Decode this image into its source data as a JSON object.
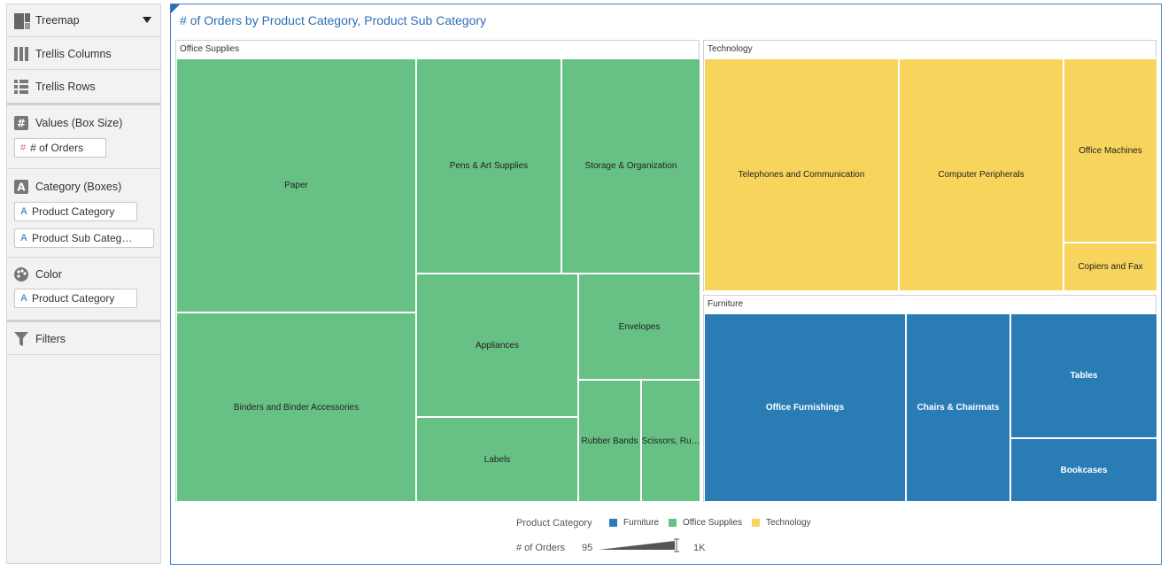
{
  "panel": {
    "chart_type_label": "Treemap",
    "trellis_columns": "Trellis Columns",
    "trellis_rows": "Trellis Rows",
    "values_label": "Values (Box Size)",
    "values_field": "# of Orders",
    "category_label": "Category (Boxes)",
    "category_fields": [
      "Product Category",
      "Product Sub Categ…"
    ],
    "color_label": "Color",
    "color_field": "Product Category",
    "filters_label": "Filters"
  },
  "chart_data": {
    "type": "treemap",
    "title": "# of Orders by Product Category, Product Sub Category",
    "colors": {
      "Office Supplies": "#68c184",
      "Technology": "#f7d55c",
      "Furniture": "#2a7cb5"
    },
    "groups": [
      {
        "name": "Office Supplies",
        "children": [
          {
            "name": "Paper",
            "value": 1350
          },
          {
            "name": "Binders and Binder Accessories",
            "value": 1010
          },
          {
            "name": "Pens & Art Supplies",
            "value": 600
          },
          {
            "name": "Storage & Organization",
            "value": 565
          },
          {
            "name": "Appliances",
            "value": 462
          },
          {
            "name": "Labels",
            "value": 270
          },
          {
            "name": "Envelopes",
            "value": 302
          },
          {
            "name": "Rubber Bands",
            "value": 185
          },
          {
            "name": "Scissors, Ru…",
            "value": 175
          }
        ]
      },
      {
        "name": "Technology",
        "children": [
          {
            "name": "Telephones and Communication",
            "value": 810
          },
          {
            "name": "Computer Peripherals",
            "value": 700
          },
          {
            "name": "Office Machines",
            "value": 320
          },
          {
            "name": "Copiers and Fax",
            "value": 95
          }
        ]
      },
      {
        "name": "Furniture",
        "children": [
          {
            "name": "Office Furnishings",
            "value": 685
          },
          {
            "name": "Chairs & Chairmats",
            "value": 350
          },
          {
            "name": "Tables",
            "value": 335
          },
          {
            "name": "Bookcases",
            "value": 165
          }
        ]
      }
    ],
    "legend": {
      "color_title": "Product Category",
      "color_items": [
        "Furniture",
        "Office Supplies",
        "Technology"
      ],
      "size_title": "# of Orders",
      "size_min": "95",
      "size_max": "1K"
    }
  }
}
